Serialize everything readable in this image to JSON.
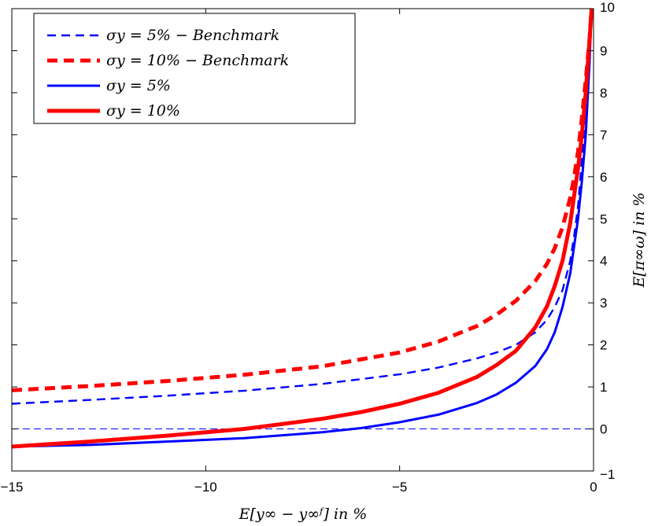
{
  "chart_data": {
    "type": "line",
    "xlabel": "E[y∞ − y∞ᶠ] in %",
    "ylabel": "E[π∞ω] in %",
    "xlim": [
      -15,
      0
    ],
    "ylim": [
      -1,
      10
    ],
    "x_ticks": [
      "−15",
      "−10",
      "−5",
      "0"
    ],
    "y_ticks": [
      "−1",
      "0",
      "1",
      "2",
      "3",
      "4",
      "5",
      "6",
      "7",
      "8",
      "9",
      "10"
    ],
    "y_axis_side": "right",
    "grid": false,
    "legend_position": "top-left",
    "reference_line": {
      "y": 0,
      "color": "#0000ff",
      "style": "dashed"
    },
    "series": [
      {
        "name": "σy = 5%  − Benchmark",
        "color": "#0000ff",
        "style": "dashed",
        "weight": "thin",
        "x": [
          -15,
          -13,
          -11,
          -9,
          -7,
          -5,
          -4,
          -3,
          -2.5,
          -2,
          -1.5,
          -1.2,
          -1,
          -0.8,
          -0.6,
          -0.5,
          -0.4,
          -0.3,
          -0.2,
          -0.1,
          -0.05
        ],
        "y": [
          0.6,
          0.69,
          0.79,
          0.91,
          1.07,
          1.3,
          1.46,
          1.68,
          1.82,
          2.0,
          2.3,
          2.6,
          2.9,
          3.3,
          4.0,
          4.6,
          5.3,
          6.4,
          7.6,
          9.0,
          10.0
        ]
      },
      {
        "name": "σy = 10%  − Benchmark",
        "color": "#ff0000",
        "style": "dashed",
        "weight": "thick",
        "x": [
          -15,
          -13,
          -11,
          -9,
          -7,
          -5,
          -4,
          -3,
          -2.5,
          -2,
          -1.5,
          -1.2,
          -1,
          -0.8,
          -0.6,
          -0.5,
          -0.4,
          -0.3,
          -0.2,
          -0.1,
          -0.05
        ],
        "y": [
          0.92,
          1.02,
          1.14,
          1.29,
          1.49,
          1.82,
          2.08,
          2.45,
          2.72,
          3.05,
          3.52,
          3.93,
          4.3,
          4.8,
          5.5,
          6.0,
          6.6,
          7.4,
          8.3,
          9.3,
          10.0
        ]
      },
      {
        "name": "σy = 5%",
        "color": "#0000ff",
        "style": "solid",
        "weight": "medium",
        "x": [
          -15,
          -13,
          -11,
          -9,
          -7,
          -6,
          -5,
          -4,
          -3,
          -2.5,
          -2,
          -1.5,
          -1.2,
          -1,
          -0.8,
          -0.6,
          -0.4,
          -0.3,
          -0.2,
          -0.1,
          -0.05
        ],
        "y": [
          -0.42,
          -0.38,
          -0.3,
          -0.22,
          -0.08,
          0.02,
          0.16,
          0.34,
          0.62,
          0.82,
          1.1,
          1.5,
          1.9,
          2.3,
          2.9,
          3.7,
          5.0,
          5.9,
          7.0,
          8.8,
          10.0
        ]
      },
      {
        "name": "σy = 10%",
        "color": "#ff0000",
        "style": "solid",
        "weight": "thick",
        "x": [
          -15,
          -13,
          -11,
          -9,
          -7,
          -6,
          -5,
          -4,
          -3,
          -2.5,
          -2,
          -1.5,
          -1.2,
          -1,
          -0.8,
          -0.6,
          -0.4,
          -0.3,
          -0.2,
          -0.1,
          -0.05
        ],
        "y": [
          -0.42,
          -0.3,
          -0.16,
          0.0,
          0.24,
          0.4,
          0.6,
          0.86,
          1.24,
          1.52,
          1.86,
          2.42,
          2.92,
          3.4,
          4.0,
          4.9,
          6.2,
          7.0,
          8.0,
          9.3,
          10.0
        ]
      }
    ]
  }
}
